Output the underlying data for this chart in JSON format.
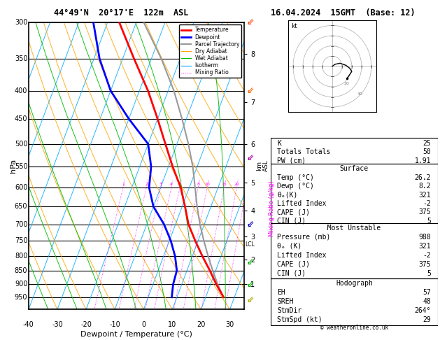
{
  "title_left": "44°49'N  20°17'E  122m  ASL",
  "title_right": "16.04.2024  15GMT  (Base: 12)",
  "xlabel": "Dewpoint / Temperature (°C)",
  "ylabel_left": "hPa",
  "ylabel_right_km": "km\nASL",
  "ylabel_mixing": "Mixing Ratio (g/kg)",
  "pmin": 300,
  "pmax": 1000,
  "x_min": -40,
  "x_max": 35,
  "pressure_ticks": [
    300,
    350,
    400,
    450,
    500,
    550,
    600,
    650,
    700,
    750,
    800,
    850,
    900,
    950
  ],
  "km_ticks": [
    1,
    2,
    3,
    4,
    5,
    6,
    7,
    8
  ],
  "km_pressures": [
    900,
    812,
    737,
    660,
    588,
    500,
    420,
    343
  ],
  "skew_factor": 0.5,
  "temp_profile_p": [
    950,
    900,
    850,
    800,
    750,
    700,
    650,
    600,
    550,
    500,
    450,
    400,
    350,
    300
  ],
  "temp_profile_t": [
    26.2,
    22.0,
    18.0,
    13.5,
    9.0,
    4.5,
    1.0,
    -3.0,
    -8.5,
    -14.0,
    -20.0,
    -27.0,
    -36.0,
    -46.0
  ],
  "dewp_profile_p": [
    950,
    900,
    850,
    800,
    750,
    700,
    650,
    600,
    550,
    500,
    450,
    400,
    350,
    300
  ],
  "dewp_profile_t": [
    8.2,
    7.0,
    6.5,
    4.0,
    0.5,
    -4.0,
    -10.0,
    -14.0,
    -16.0,
    -20.0,
    -30.0,
    -40.0,
    -48.0,
    -55.0
  ],
  "parcel_profile_p": [
    950,
    900,
    850,
    800,
    750,
    700,
    650,
    600,
    550,
    500,
    450,
    400,
    350,
    300
  ],
  "parcel_profile_t": [
    26.2,
    22.5,
    19.0,
    15.5,
    12.0,
    8.5,
    5.2,
    2.0,
    -1.5,
    -6.0,
    -11.5,
    -18.0,
    -26.5,
    -37.5
  ],
  "lcl_pressure": 762,
  "color_temp": "#ff0000",
  "color_dewp": "#0000ff",
  "color_parcel": "#999999",
  "color_dry_adiabat": "#ffa500",
  "color_wet_adiabat": "#00bb00",
  "color_isotherm": "#00aaff",
  "color_mixing": "#ff00ff",
  "bg_color": "#ffffff",
  "legend_items": [
    "Temperature",
    "Dewpoint",
    "Parcel Trajectory",
    "Dry Adiabat",
    "Wet Adiabat",
    "Isotherm",
    "Mixing Ratio"
  ],
  "table_K": "25",
  "table_TT": "50",
  "table_PW": "1.91",
  "surf_temp": "26.2",
  "surf_dewp": "8.2",
  "surf_theta": "321",
  "surf_li": "-2",
  "surf_cape": "375",
  "surf_cin": "5",
  "mu_press": "988",
  "mu_theta": "321",
  "mu_li": "-2",
  "mu_cape": "375",
  "mu_cin": "5",
  "hodo_eh": "57",
  "hodo_sreh": "48",
  "hodo_stmdir": "264°",
  "hodo_stmspd": "29",
  "copyright": "© weatheronline.co.uk",
  "wind_barb_colors": [
    "#ff4400",
    "#ff6600",
    "#aa00aa",
    "#0000bb",
    "#00aa00",
    "#00aa00",
    "#aaaa00"
  ],
  "wind_barb_pressures": [
    300,
    400,
    530,
    700,
    820,
    900,
    960
  ]
}
